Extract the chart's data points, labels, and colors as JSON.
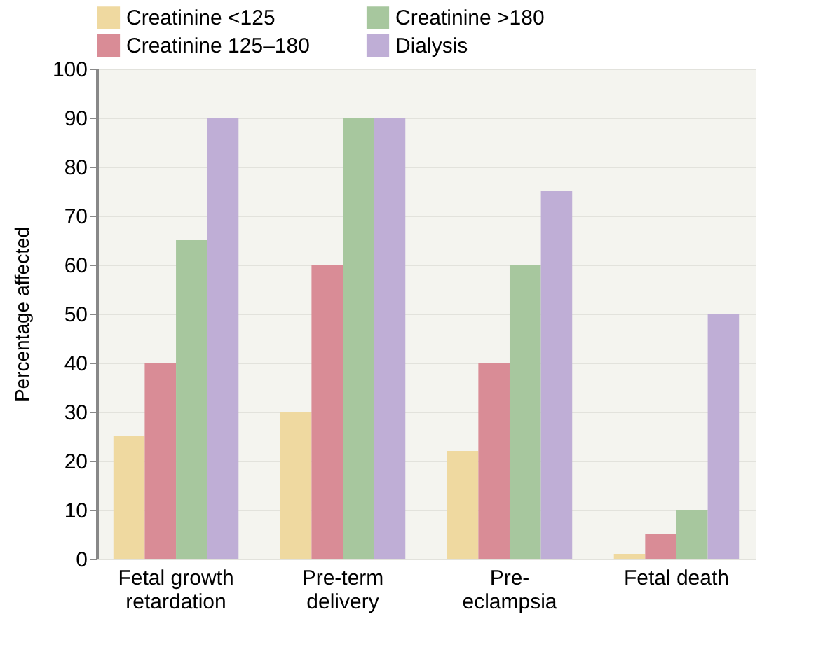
{
  "chart_data": {
    "type": "bar",
    "ylabel": "Percentage affected",
    "categories": [
      "Fetal growth\nretardation",
      "Pre-term\ndelivery",
      "Pre-\neclampsia",
      "Fetal death"
    ],
    "series": [
      {
        "name": "Creatinine <125",
        "color": "#efd9a0",
        "values": [
          25,
          30,
          22,
          1
        ]
      },
      {
        "name": "Creatinine 125–180",
        "color": "#d98c96",
        "values": [
          40,
          60,
          40,
          5
        ]
      },
      {
        "name": "Creatinine >180",
        "color": "#a7c79e",
        "values": [
          65,
          90,
          60,
          10
        ]
      },
      {
        "name": "Dialysis",
        "color": "#bfaed6",
        "values": [
          90,
          90,
          75,
          50
        ]
      }
    ],
    "ylim": [
      0,
      100
    ],
    "yticks": [
      0,
      10,
      20,
      30,
      40,
      50,
      60,
      70,
      80,
      90,
      100
    ],
    "grid": "y",
    "legend": "top"
  }
}
